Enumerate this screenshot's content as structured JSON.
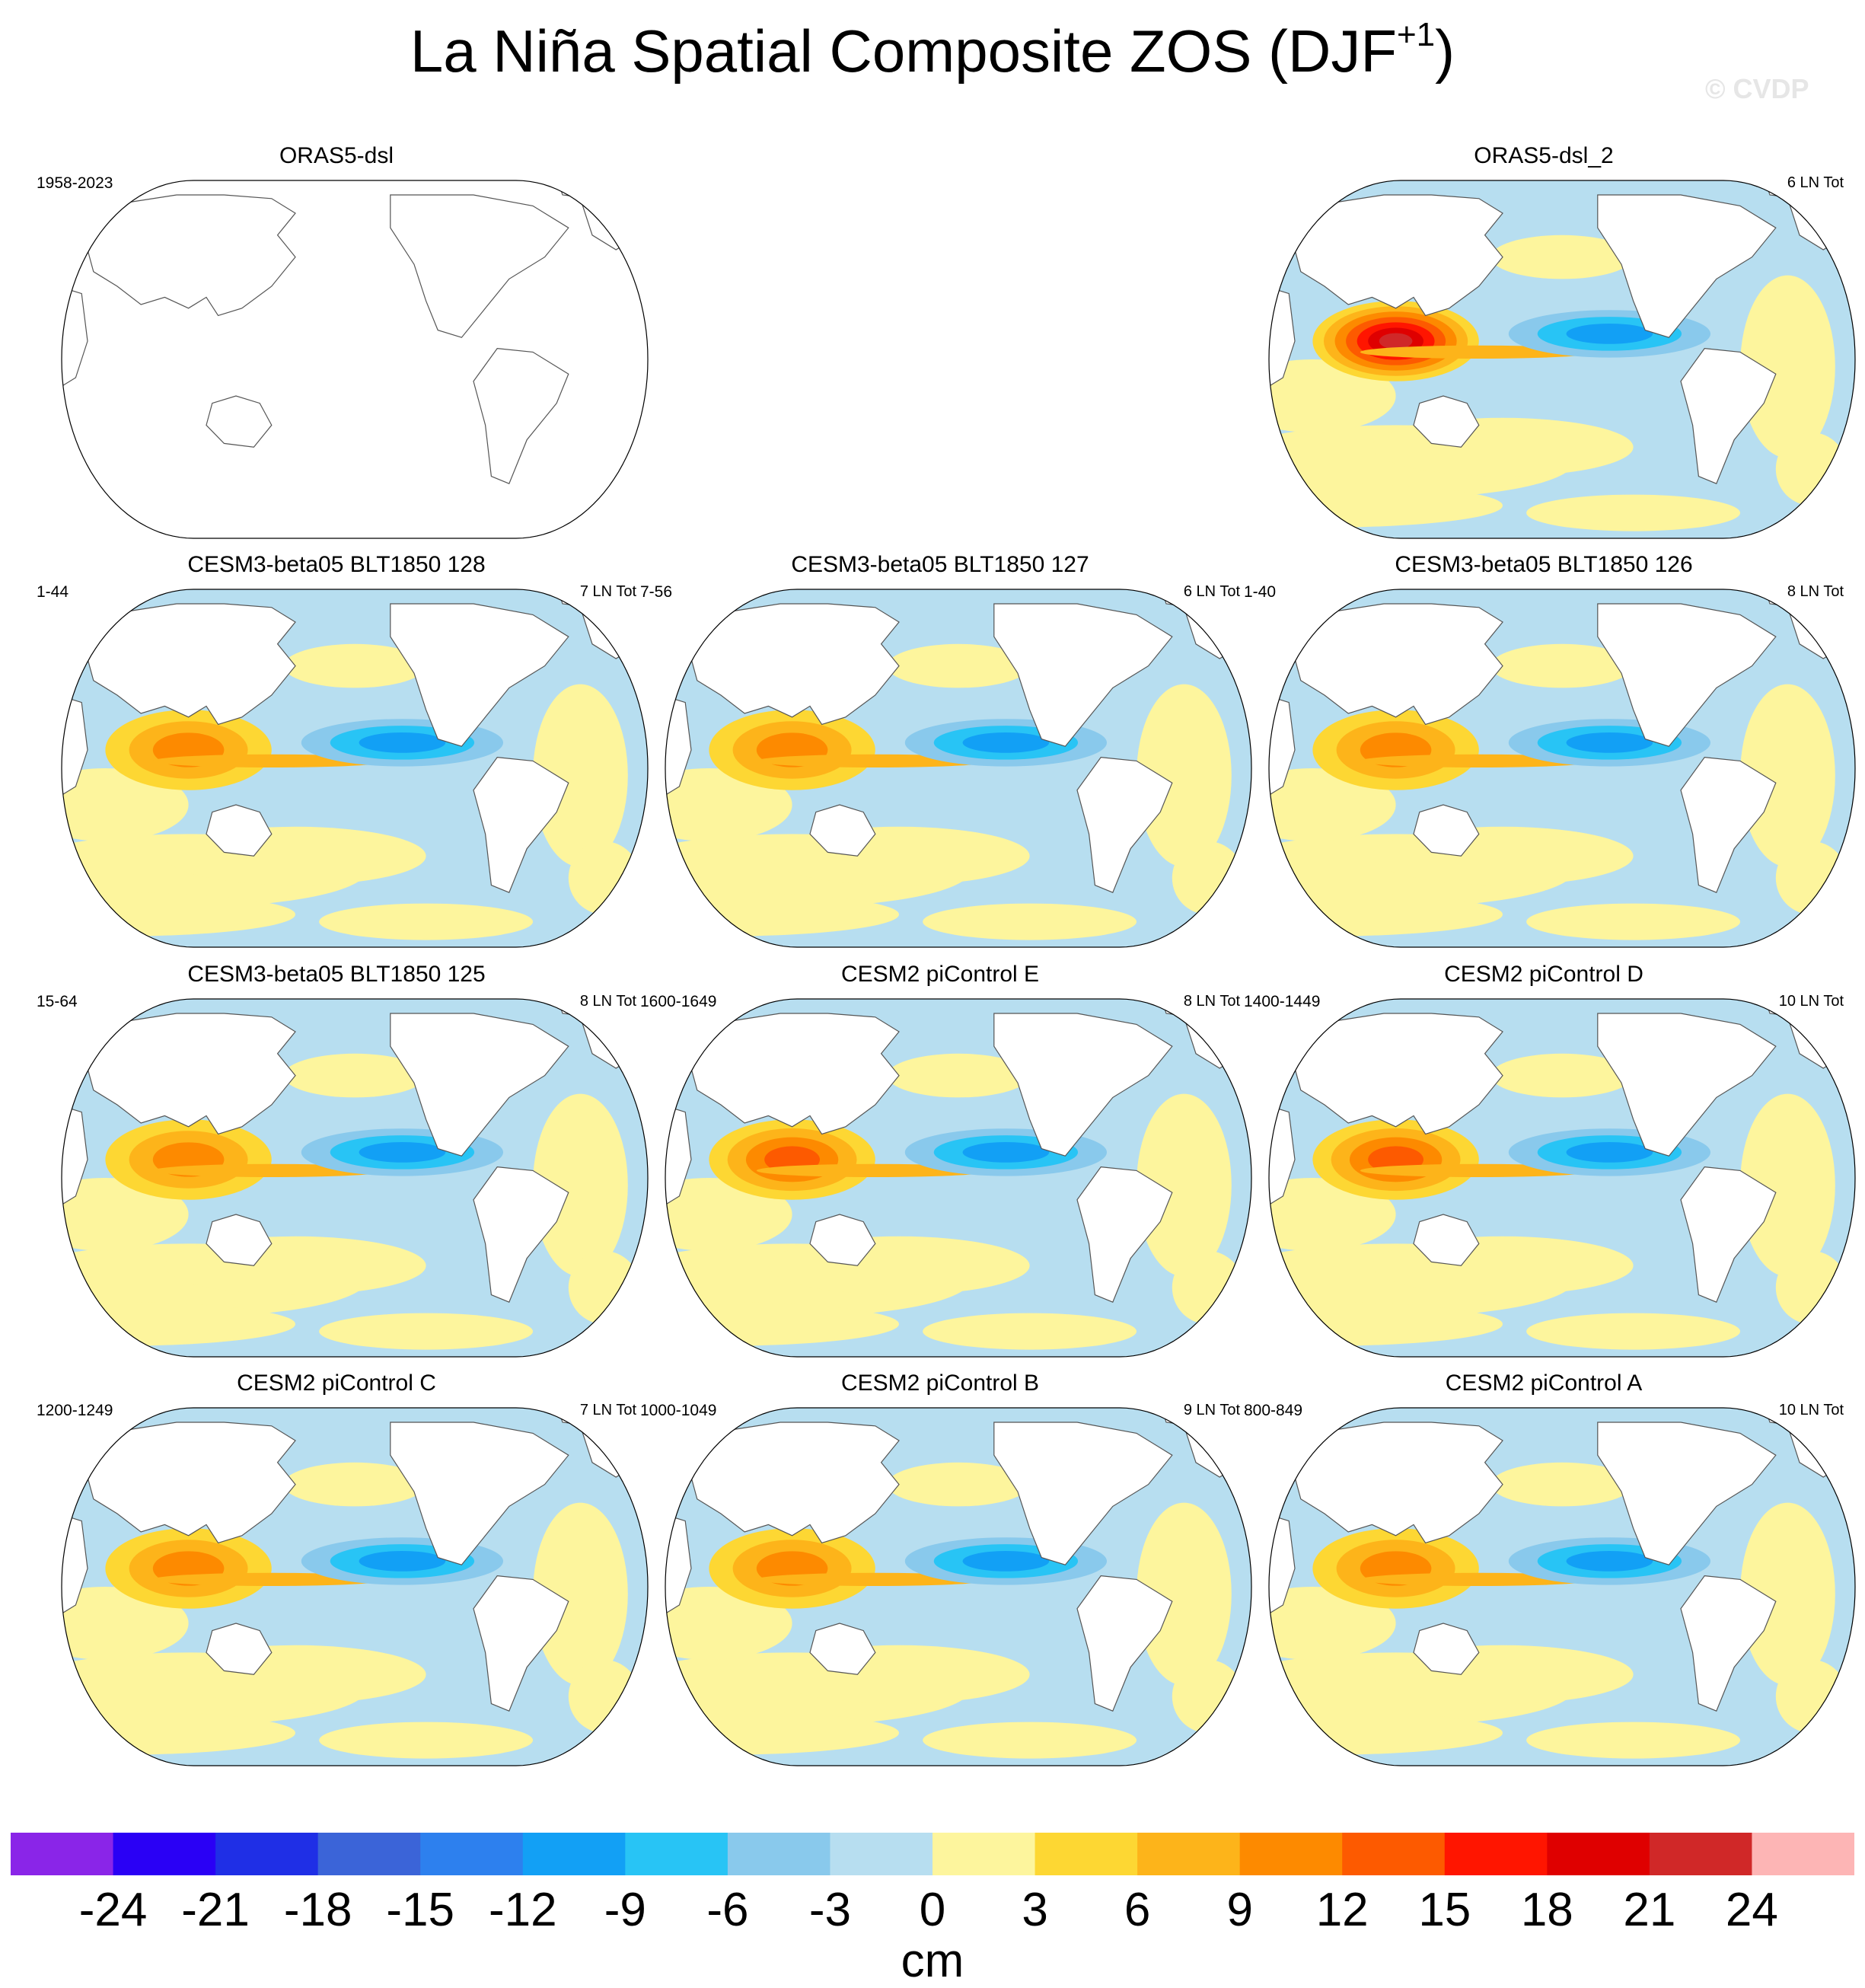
{
  "title": {
    "main": "La Niña Spatial Composite ZOS (DJF",
    "superscript": "+1",
    "close": ")"
  },
  "watermark": "© CVDP",
  "colors": {
    "ocean_light_blue": "#b7def0",
    "ocean_yellow": "#fdf59d",
    "land": "#ffffff",
    "coast": "#555555"
  },
  "chart_data": {
    "type": "map-panels",
    "projection": "Robinson, Pacific-centered",
    "variable": "ZOS",
    "season": "DJF+1",
    "units": "cm",
    "contour_levels": [
      -24,
      -21,
      -18,
      -15,
      -12,
      -9,
      -6,
      -3,
      0,
      3,
      6,
      9,
      12,
      15,
      18,
      21,
      24
    ],
    "colorbar_colors": [
      "#8a25e8",
      "#2a00f5",
      "#1f2fe6",
      "#3b64d8",
      "#2d80ee",
      "#12a0f5",
      "#28c4f5",
      "#89c9ec",
      "#b7def0",
      "#fdf59d",
      "#fdd733",
      "#fdb41a",
      "#fd8a00",
      "#fd5a00",
      "#ff1500",
      "#df0000",
      "#d02828",
      "#fdb5b5"
    ],
    "panels": [
      {
        "title": "ORAS5-dsl",
        "left": "1958-2023",
        "right": "",
        "blank": true,
        "pattern": {
          "west_pacific_max_cm": 0,
          "east_pacific_min_cm": 0
        }
      },
      {
        "title": "ORAS5-dsl_2",
        "left": "",
        "right": "6 LN Tot",
        "blank": false,
        "pattern": {
          "west_pacific_max_cm": 21,
          "east_pacific_min_cm": -9
        }
      },
      {
        "title": "CESM3-beta05 BLT1850 128",
        "left": "1-44",
        "right": "7 LN Tot",
        "blank": false,
        "pattern": {
          "west_pacific_max_cm": 9,
          "east_pacific_min_cm": -9
        }
      },
      {
        "title": "CESM3-beta05 BLT1850 127",
        "left": "7-56",
        "right": "6 LN Tot",
        "blank": false,
        "pattern": {
          "west_pacific_max_cm": 9,
          "east_pacific_min_cm": -9
        }
      },
      {
        "title": "CESM3-beta05 BLT1850 126",
        "left": "1-40",
        "right": "8 LN Tot",
        "blank": false,
        "pattern": {
          "west_pacific_max_cm": 9,
          "east_pacific_min_cm": -9
        }
      },
      {
        "title": "CESM3-beta05 BLT1850 125",
        "left": "15-64",
        "right": "8 LN Tot",
        "blank": false,
        "pattern": {
          "west_pacific_max_cm": 9,
          "east_pacific_min_cm": -9
        }
      },
      {
        "title": "CESM2 piControl E",
        "left": "1600-1649",
        "right": "8 LN Tot",
        "blank": false,
        "pattern": {
          "west_pacific_max_cm": 12,
          "east_pacific_min_cm": -9
        }
      },
      {
        "title": "CESM2 piControl D",
        "left": "1400-1449",
        "right": "10 LN Tot",
        "blank": false,
        "pattern": {
          "west_pacific_max_cm": 12,
          "east_pacific_min_cm": -9
        }
      },
      {
        "title": "CESM2 piControl C",
        "left": "1200-1249",
        "right": "7 LN Tot",
        "blank": false,
        "pattern": {
          "west_pacific_max_cm": 9,
          "east_pacific_min_cm": -9
        }
      },
      {
        "title": "CESM2 piControl B",
        "left": "1000-1049",
        "right": "9 LN Tot",
        "blank": false,
        "pattern": {
          "west_pacific_max_cm": 9,
          "east_pacific_min_cm": -9
        }
      },
      {
        "title": "CESM2 piControl A",
        "left": "800-849",
        "right": "10 LN Tot",
        "blank": false,
        "pattern": {
          "west_pacific_max_cm": 9,
          "east_pacific_min_cm": -9
        }
      }
    ],
    "colorbar": {
      "tick_labels": [
        "-24",
        "-21",
        "-18",
        "-15",
        "-12",
        "-9",
        "-6",
        "-3",
        "0",
        "3",
        "6",
        "9",
        "12",
        "15",
        "18",
        "21",
        "24"
      ],
      "label": "cm"
    }
  }
}
